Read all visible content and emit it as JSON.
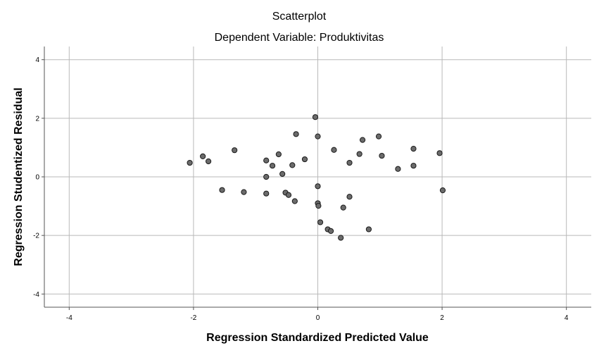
{
  "chart_data": {
    "type": "scatter",
    "title": "Scatterplot",
    "subtitle": "Dependent Variable: Produktivitas",
    "xlabel": "Regression Standardized Predicted Value",
    "ylabel": "Regression Studentized Residual",
    "xlim": [
      -4.4,
      4.4
    ],
    "ylim": [
      -4.45,
      4.45
    ],
    "xticks": [
      -4,
      -2,
      0,
      2,
      4
    ],
    "yticks": [
      4,
      2,
      0,
      -2,
      -4
    ],
    "grid": true,
    "colors": {
      "marker_fill": "#6b6b6b",
      "marker_stroke": "#1a1a1a",
      "grid": "#b9b9b9",
      "axis": "#555555"
    },
    "points": [
      {
        "x": -2.06,
        "y": 0.48
      },
      {
        "x": -1.85,
        "y": 0.7
      },
      {
        "x": -1.76,
        "y": 0.53
      },
      {
        "x": -1.54,
        "y": -0.45
      },
      {
        "x": -1.34,
        "y": 0.91
      },
      {
        "x": -1.19,
        "y": -0.52
      },
      {
        "x": -0.83,
        "y": 0.56
      },
      {
        "x": -0.83,
        "y": 0.0
      },
      {
        "x": -0.83,
        "y": -0.57
      },
      {
        "x": -0.73,
        "y": 0.38
      },
      {
        "x": -0.63,
        "y": 0.77
      },
      {
        "x": -0.57,
        "y": 0.1
      },
      {
        "x": -0.52,
        "y": -0.54
      },
      {
        "x": -0.47,
        "y": -0.62
      },
      {
        "x": -0.41,
        "y": 0.4
      },
      {
        "x": -0.37,
        "y": -0.83
      },
      {
        "x": -0.35,
        "y": 1.46
      },
      {
        "x": -0.21,
        "y": 0.6
      },
      {
        "x": -0.04,
        "y": 2.04
      },
      {
        "x": 0.0,
        "y": 1.38
      },
      {
        "x": 0.0,
        "y": -0.32
      },
      {
        "x": 0.0,
        "y": -0.9
      },
      {
        "x": 0.01,
        "y": -0.99
      },
      {
        "x": 0.04,
        "y": -1.55
      },
      {
        "x": 0.16,
        "y": -1.79
      },
      {
        "x": 0.21,
        "y": -1.85
      },
      {
        "x": 0.26,
        "y": 0.92
      },
      {
        "x": 0.37,
        "y": -2.08
      },
      {
        "x": 0.41,
        "y": -1.05
      },
      {
        "x": 0.51,
        "y": 0.48
      },
      {
        "x": 0.51,
        "y": -0.68
      },
      {
        "x": 0.67,
        "y": 0.78
      },
      {
        "x": 0.72,
        "y": 1.26
      },
      {
        "x": 0.82,
        "y": -1.79
      },
      {
        "x": 0.98,
        "y": 1.38
      },
      {
        "x": 1.03,
        "y": 0.72
      },
      {
        "x": 1.29,
        "y": 0.27
      },
      {
        "x": 1.54,
        "y": 0.96
      },
      {
        "x": 1.54,
        "y": 0.38
      },
      {
        "x": 1.96,
        "y": 0.81
      },
      {
        "x": 2.01,
        "y": -0.46
      }
    ]
  }
}
